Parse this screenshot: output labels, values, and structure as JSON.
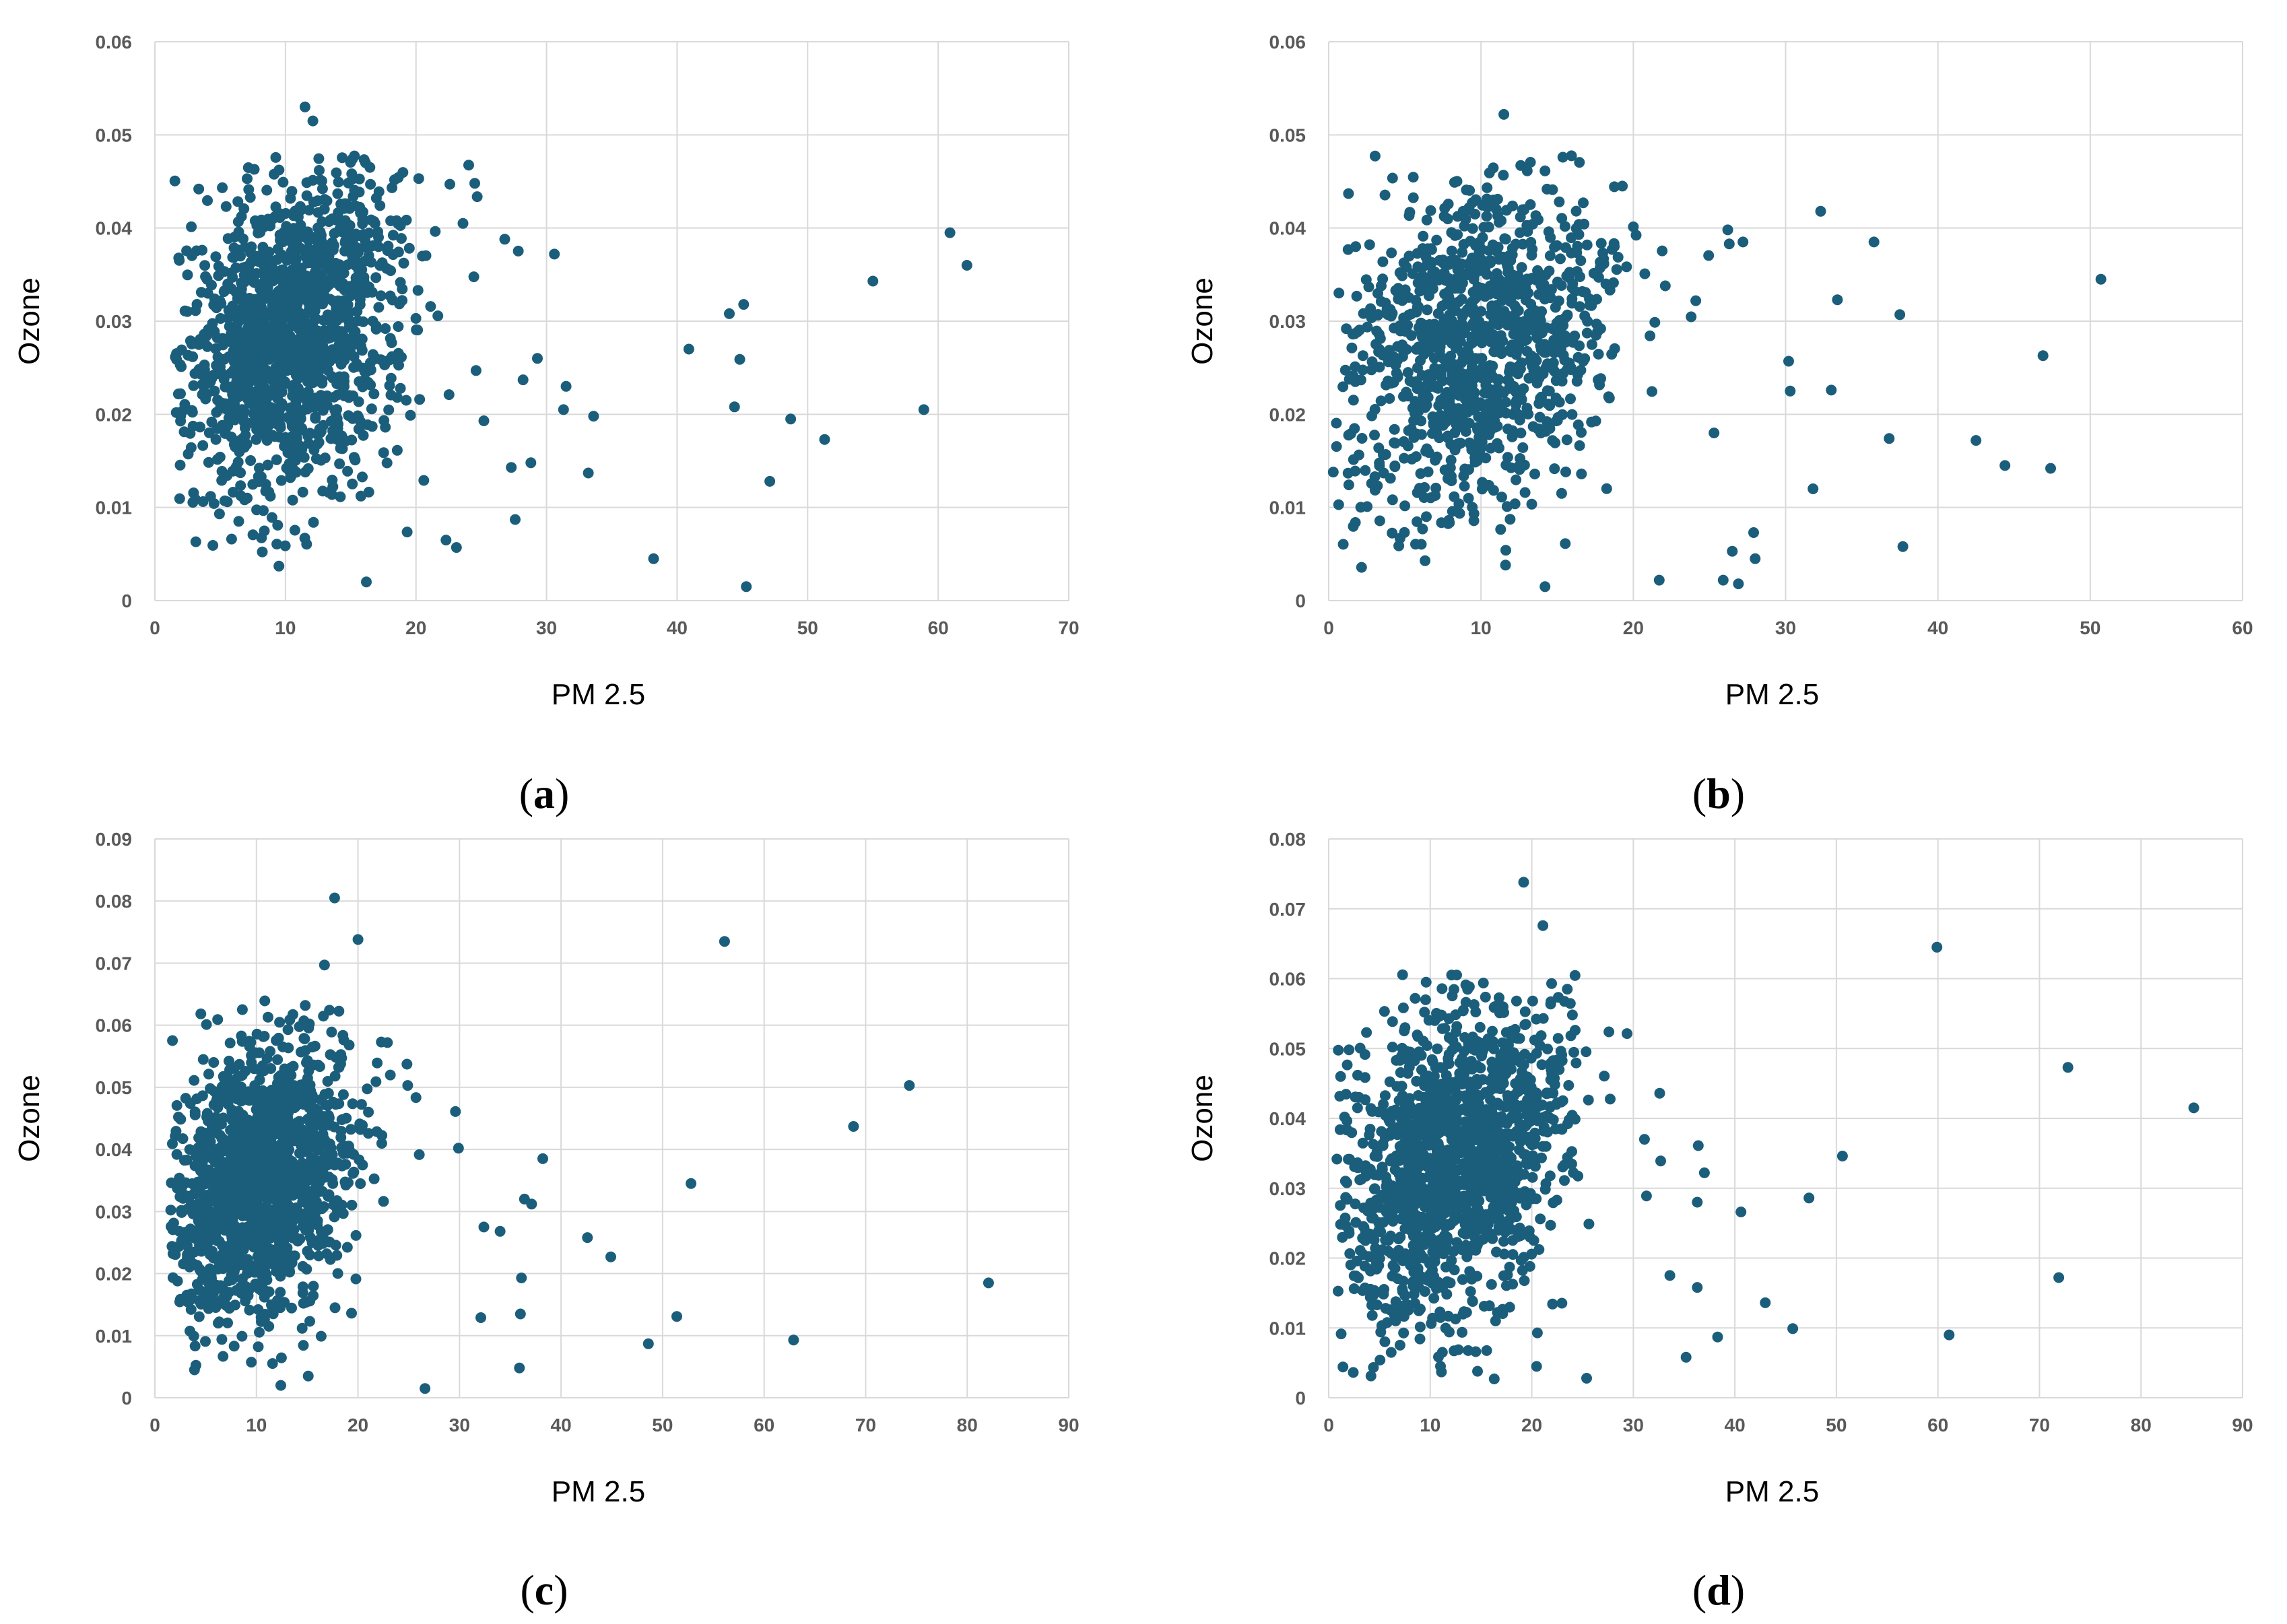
{
  "figure": {
    "marker_color": "#1b5e7b",
    "grid_color": "#d9d9d9",
    "tick_text_color": "#595959"
  },
  "chart_data": [
    {
      "type": "scatter",
      "caption": "a",
      "xlabel": "PM 2.5",
      "ylabel": "Ozone",
      "xlim": [
        0,
        70
      ],
      "ylim": [
        0,
        0.06
      ],
      "xticks": [
        0,
        10,
        20,
        30,
        40,
        50,
        60,
        70
      ],
      "yticks": [
        0,
        0.01,
        0.02,
        0.03,
        0.04,
        0.05,
        0.06
      ],
      "xtick_labels": [
        "0",
        "10",
        "20",
        "30",
        "40",
        "50",
        "60",
        "70"
      ],
      "ytick_labels": [
        "0",
        "0.01",
        "0.02",
        "0.03",
        "0.04",
        "0.05",
        "0.06"
      ],
      "grid": true,
      "cluster": {
        "x_mean": 10.5,
        "x_sd": 4.0,
        "y_mean": 0.0285,
        "y_sd": 0.0085,
        "x_min": 1.5,
        "x_max": 28,
        "y_min": 0.005,
        "y_max": 0.048,
        "count": 1400
      },
      "points": [
        [
          11.5,
          0.053
        ],
        [
          12.1,
          0.0515
        ],
        [
          16.2,
          0.002
        ],
        [
          9.5,
          0.0037
        ],
        [
          30.6,
          0.0372
        ],
        [
          31.3,
          0.0205
        ],
        [
          31.5,
          0.023
        ],
        [
          33.2,
          0.0137
        ],
        [
          33.6,
          0.0198
        ],
        [
          38.2,
          0.0045
        ],
        [
          40.9,
          0.027
        ],
        [
          44.0,
          0.0308
        ],
        [
          44.4,
          0.0208
        ],
        [
          44.8,
          0.0259
        ],
        [
          45.1,
          0.0318
        ],
        [
          45.3,
          0.0015
        ],
        [
          47.1,
          0.0128
        ],
        [
          48.7,
          0.0195
        ],
        [
          51.3,
          0.0173
        ],
        [
          55.0,
          0.0343
        ],
        [
          58.9,
          0.0205
        ],
        [
          60.9,
          0.0395
        ],
        [
          62.2,
          0.036
        ],
        [
          29.3,
          0.026
        ],
        [
          28.8,
          0.0148
        ],
        [
          28.2,
          0.0237
        ],
        [
          27.6,
          0.0087
        ],
        [
          27.3,
          0.0143
        ],
        [
          26.8,
          0.0388
        ],
        [
          24.5,
          0.0448
        ],
        [
          23.6,
          0.0405
        ],
        [
          24.6,
          0.0247
        ],
        [
          25.2,
          0.0193
        ],
        [
          22.3,
          0.0065
        ],
        [
          23.1,
          0.0057
        ]
      ]
    },
    {
      "type": "scatter",
      "caption": "b",
      "xlabel": "PM 2.5",
      "ylabel": "Ozone",
      "xlim": [
        0,
        60
      ],
      "ylim": [
        0,
        0.06
      ],
      "xticks": [
        0,
        10,
        20,
        30,
        40,
        50,
        60
      ],
      "yticks": [
        0,
        0.01,
        0.02,
        0.03,
        0.04,
        0.05,
        0.06
      ],
      "xtick_labels": [
        "0",
        "10",
        "20",
        "30",
        "40",
        "50",
        "60"
      ],
      "ytick_labels": [
        "0",
        "0.01",
        "0.02",
        "0.03",
        "0.04",
        "0.05",
        "0.06"
      ],
      "grid": true,
      "cluster": {
        "x_mean": 9.5,
        "x_sd": 4.2,
        "y_mean": 0.0275,
        "y_sd": 0.0085,
        "x_min": 0.5,
        "x_max": 25,
        "y_min": 0.003,
        "y_max": 0.048,
        "count": 1100
      },
      "points": [
        [
          11.5,
          0.0522
        ],
        [
          14.2,
          0.0015
        ],
        [
          21.7,
          0.0022
        ],
        [
          25.9,
          0.0022
        ],
        [
          26.9,
          0.0018
        ],
        [
          26.5,
          0.0053
        ],
        [
          28.0,
          0.0045
        ],
        [
          27.9,
          0.0073
        ],
        [
          25.3,
          0.018
        ],
        [
          26.2,
          0.0398
        ],
        [
          26.3,
          0.0383
        ],
        [
          27.2,
          0.0385
        ],
        [
          30.2,
          0.0257
        ],
        [
          30.3,
          0.0225
        ],
        [
          31.8,
          0.012
        ],
        [
          32.3,
          0.0418
        ],
        [
          33.0,
          0.0226
        ],
        [
          33.4,
          0.0323
        ],
        [
          35.8,
          0.0385
        ],
        [
          36.8,
          0.0174
        ],
        [
          37.5,
          0.0307
        ],
        [
          37.7,
          0.0058
        ],
        [
          42.5,
          0.0172
        ],
        [
          44.4,
          0.0145
        ],
        [
          46.9,
          0.0263
        ],
        [
          47.4,
          0.0142
        ],
        [
          50.7,
          0.0345
        ],
        [
          0.3,
          0.0138
        ],
        [
          1.3,
          0.0437
        ],
        [
          24.1,
          0.0322
        ]
      ]
    },
    {
      "type": "scatter",
      "caption": "c",
      "xlabel": "PM 2.5",
      "ylabel": "Ozone",
      "xlim": [
        0,
        90
      ],
      "ylim": [
        0,
        0.09
      ],
      "xticks": [
        0,
        10,
        20,
        30,
        40,
        50,
        60,
        70,
        80,
        90
      ],
      "yticks": [
        0,
        0.01,
        0.02,
        0.03,
        0.04,
        0.05,
        0.06,
        0.07,
        0.08,
        0.09
      ],
      "xtick_labels": [
        "0",
        "10",
        "20",
        "30",
        "40",
        "50",
        "60",
        "70",
        "80",
        "90"
      ],
      "ytick_labels": [
        "0",
        "0.01",
        "0.02",
        "0.03",
        "0.04",
        "0.05",
        "0.06",
        "0.07",
        "0.08",
        "0.09"
      ],
      "grid": true,
      "cluster": {
        "x_mean": 10.0,
        "x_sd": 4.5,
        "y_mean": 0.035,
        "y_sd": 0.011,
        "x_min": 1.5,
        "x_max": 32,
        "y_min": 0.005,
        "y_max": 0.064,
        "count": 1400
      },
      "points": [
        [
          17.7,
          0.0805
        ],
        [
          20.0,
          0.0738
        ],
        [
          56.1,
          0.0735
        ],
        [
          16.7,
          0.0697
        ],
        [
          74.3,
          0.0503
        ],
        [
          68.8,
          0.0437
        ],
        [
          82.1,
          0.0185
        ],
        [
          62.9,
          0.0093
        ],
        [
          51.4,
          0.0131
        ],
        [
          52.8,
          0.0345
        ],
        [
          48.6,
          0.0087
        ],
        [
          44.9,
          0.0227
        ],
        [
          42.6,
          0.0258
        ],
        [
          38.2,
          0.0385
        ],
        [
          37.1,
          0.0312
        ],
        [
          36.4,
          0.032
        ],
        [
          35.9,
          0.0048
        ],
        [
          36.0,
          0.0135
        ],
        [
          36.1,
          0.0193
        ],
        [
          34.0,
          0.0268
        ],
        [
          32.4,
          0.0275
        ],
        [
          32.1,
          0.0129
        ],
        [
          29.6,
          0.0461
        ],
        [
          29.9,
          0.0402
        ],
        [
          26.6,
          0.0015
        ],
        [
          12.4,
          0.002
        ],
        [
          3.9,
          0.0045
        ],
        [
          15.1,
          0.0035
        ],
        [
          24.9,
          0.0503
        ],
        [
          22.9,
          0.0572
        ],
        [
          22.3,
          0.0573
        ]
      ]
    },
    {
      "type": "scatter",
      "caption": "d",
      "xlabel": "PM 2.5",
      "ylabel": "Ozone",
      "xlim": [
        0,
        90
      ],
      "ylim": [
        0,
        0.08
      ],
      "xticks": [
        0,
        10,
        20,
        30,
        40,
        50,
        60,
        70,
        80,
        90
      ],
      "yticks": [
        0,
        0.01,
        0.02,
        0.03,
        0.04,
        0.05,
        0.06,
        0.07,
        0.08
      ],
      "xtick_labels": [
        "0",
        "10",
        "20",
        "30",
        "40",
        "50",
        "60",
        "70",
        "80",
        "90"
      ],
      "ytick_labels": [
        "0",
        "0.01",
        "0.02",
        "0.03",
        "0.04",
        "0.05",
        "0.06",
        "0.07",
        "0.08"
      ],
      "grid": true,
      "cluster": {
        "x_mean": 12.5,
        "x_sd": 5.5,
        "y_mean": 0.034,
        "y_sd": 0.011,
        "x_min": 0.8,
        "x_max": 31,
        "y_min": 0.003,
        "y_max": 0.061,
        "count": 1400
      },
      "points": [
        [
          19.2,
          0.0738
        ],
        [
          21.1,
          0.0676
        ],
        [
          9.6,
          0.0595
        ],
        [
          59.9,
          0.0645
        ],
        [
          72.8,
          0.0473
        ],
        [
          85.2,
          0.0415
        ],
        [
          71.9,
          0.0172
        ],
        [
          61.1,
          0.009
        ],
        [
          50.6,
          0.0346
        ],
        [
          47.3,
          0.0286
        ],
        [
          45.7,
          0.0099
        ],
        [
          43.0,
          0.0136
        ],
        [
          40.6,
          0.0266
        ],
        [
          38.3,
          0.0087
        ],
        [
          37.0,
          0.0322
        ],
        [
          36.4,
          0.0361
        ],
        [
          36.3,
          0.0158
        ],
        [
          36.3,
          0.028
        ],
        [
          35.2,
          0.0058
        ],
        [
          33.6,
          0.0175
        ],
        [
          32.6,
          0.0436
        ],
        [
          32.7,
          0.0339
        ],
        [
          31.1,
          0.037
        ],
        [
          31.3,
          0.0289
        ],
        [
          25.4,
          0.0028
        ],
        [
          16.3,
          0.0027
        ],
        [
          11.1,
          0.0037
        ],
        [
          24.0,
          0.0548
        ],
        [
          23.5,
          0.0585
        ]
      ]
    }
  ]
}
